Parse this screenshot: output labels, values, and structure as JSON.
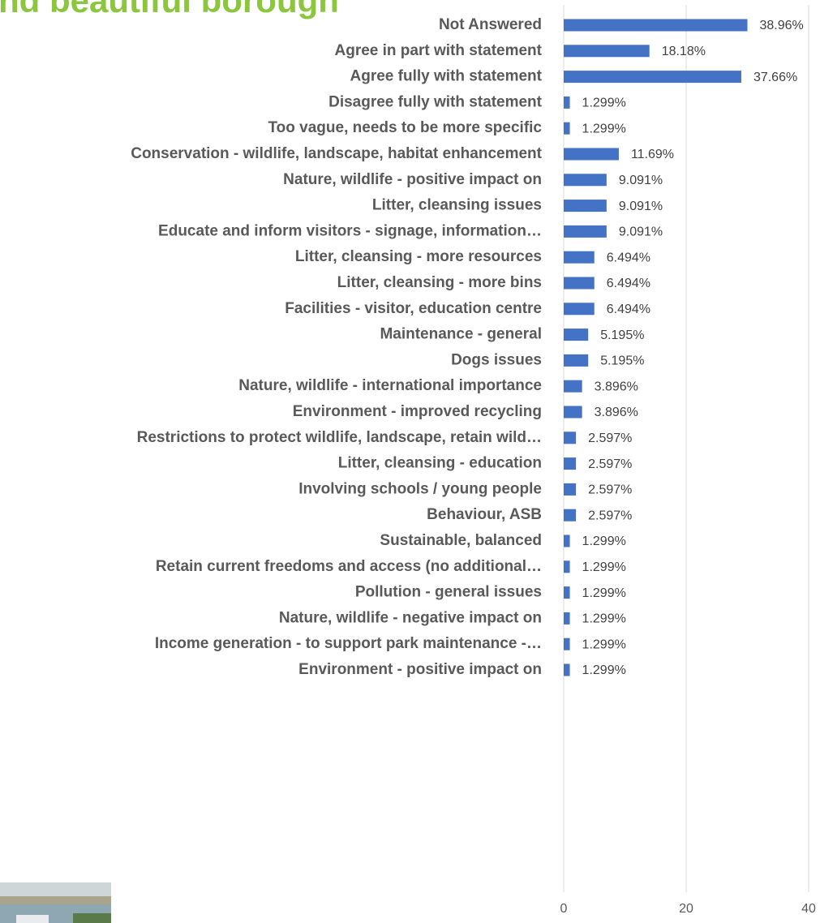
{
  "chart_data": {
    "type": "hbar",
    "title": "nd beautiful borough",
    "categories": [
      "Not Answered",
      "Agree in part with statement",
      "Agree fully with statement",
      "Disagree fully with statement",
      "Too vague, needs to be more specific",
      "Conservation - wildlife, landscape, habitat enhancement",
      "Nature, wildlife - positive impact on",
      "Litter, cleansing issues",
      "Educate and inform visitors  - signage, information…",
      "Litter, cleansing - more resources",
      "Litter, cleansing - more bins",
      "Facilities - visitor, education centre",
      "Maintenance - general",
      "Dogs issues",
      "Nature, wildlife - international importance",
      "Environment - improved recycling",
      "Restrictions to protect wildlife, landscape, retain wild…",
      "Litter, cleansing - education",
      "Involving schools / young people",
      "Behaviour, ASB",
      "Sustainable, balanced",
      "Retain current freedoms and access (no additional…",
      "Pollution - general issues",
      "Nature, wildlife - negative impact on",
      "Income generation - to support park maintenance -…",
      "Environment - positive impact on"
    ],
    "values": [
      30,
      14,
      29,
      1,
      1,
      9,
      7,
      7,
      7,
      5,
      5,
      5,
      4,
      4,
      3,
      3,
      2,
      2,
      2,
      2,
      1,
      1,
      1,
      1,
      1,
      1
    ],
    "percent_labels": [
      "38.96%",
      "18.18%",
      "37.66%",
      "1.299%",
      "1.299%",
      "11.69%",
      "9.091%",
      "9.091%",
      "9.091%",
      "6.494%",
      "6.494%",
      "6.494%",
      "5.195%",
      "5.195%",
      "3.896%",
      "3.896%",
      "2.597%",
      "2.597%",
      "2.597%",
      "2.597%",
      "1.299%",
      "1.299%",
      "1.299%",
      "1.299%",
      "1.299%",
      "1.299%"
    ],
    "color": "#4472c4",
    "xlim": [
      0,
      40
    ],
    "xticks": [
      0,
      20,
      40
    ],
    "grid": true
  }
}
